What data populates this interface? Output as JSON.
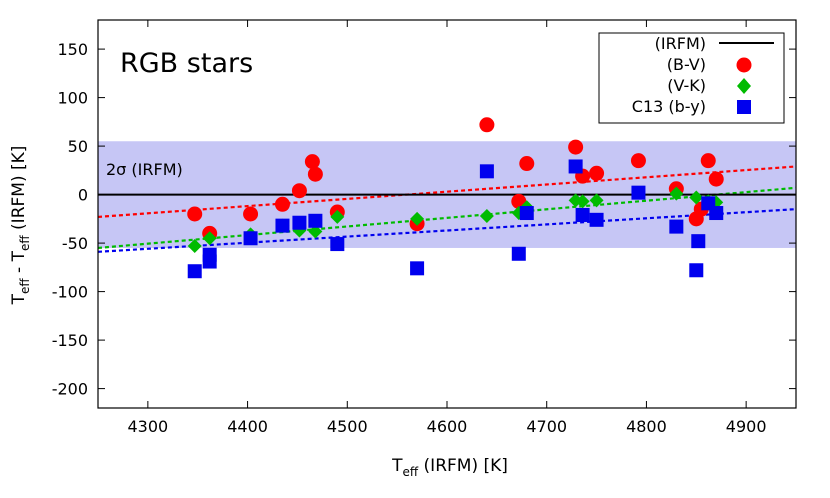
{
  "chart_data": {
    "type": "scatter",
    "title": "RGB stars",
    "xlabel": {
      "main": "T",
      "sub": "eff",
      "rest": " (IRFM) [K]"
    },
    "ylabel": {
      "main1": "T",
      "sub1": "eff",
      "mid": " - T",
      "sub2": "eff",
      "rest": " (IRFM) [K]"
    },
    "xlim": [
      4250,
      4950
    ],
    "ylim": [
      -220,
      180
    ],
    "xticks": [
      4300,
      4400,
      4500,
      4600,
      4700,
      4800,
      4900
    ],
    "yticks": [
      150,
      100,
      50,
      0,
      -50,
      -100,
      -150,
      -200
    ],
    "band": {
      "label": "2σ (IRFM)",
      "ymin": -55,
      "ymax": 55,
      "color": "#c6c6f5"
    },
    "zero_line": {
      "name": "(IRFM)",
      "y": 0,
      "color": "#000000"
    },
    "legend_position": "top-right",
    "series": [
      {
        "name": "(B-V)",
        "marker": "circle",
        "color": "#ff0000",
        "fit": {
          "intercept_at_xmin": -23,
          "intercept_at_xmax": 29
        },
        "points": [
          [
            4347,
            -20
          ],
          [
            4362,
            -40
          ],
          [
            4403,
            -20
          ],
          [
            4435,
            -10
          ],
          [
            4452,
            4
          ],
          [
            4465,
            34
          ],
          [
            4468,
            21
          ],
          [
            4490,
            -18
          ],
          [
            4570,
            -30
          ],
          [
            4640,
            72
          ],
          [
            4672,
            -7
          ],
          [
            4680,
            32
          ],
          [
            4729,
            49
          ],
          [
            4736,
            19
          ],
          [
            4750,
            22
          ],
          [
            4792,
            35
          ],
          [
            4830,
            6
          ],
          [
            4850,
            -25
          ],
          [
            4855,
            -15
          ],
          [
            4862,
            35
          ],
          [
            4870,
            16
          ]
        ]
      },
      {
        "name": "(V-K)",
        "marker": "diamond",
        "color": "#00bb00",
        "fit": {
          "intercept_at_xmin": -55,
          "intercept_at_xmax": 7
        },
        "points": [
          [
            4347,
            -53
          ],
          [
            4362,
            -45
          ],
          [
            4403,
            -41
          ],
          [
            4435,
            -32
          ],
          [
            4452,
            -37
          ],
          [
            4468,
            -38
          ],
          [
            4490,
            -23
          ],
          [
            4570,
            -25
          ],
          [
            4640,
            -22
          ],
          [
            4672,
            -19
          ],
          [
            4680,
            -13
          ],
          [
            4729,
            -6
          ],
          [
            4736,
            -7
          ],
          [
            4750,
            -6
          ],
          [
            4830,
            1
          ],
          [
            4850,
            -3
          ],
          [
            4862,
            -7
          ],
          [
            4870,
            -8
          ]
        ]
      },
      {
        "name": "C13 (b-y)",
        "marker": "square",
        "color": "#0000ee",
        "fit": {
          "intercept_at_xmin": -59,
          "intercept_at_xmax": -15
        },
        "points": [
          [
            4347,
            -79
          ],
          [
            4362,
            -62
          ],
          [
            4362,
            -69
          ],
          [
            4403,
            -45
          ],
          [
            4435,
            -32
          ],
          [
            4452,
            -29
          ],
          [
            4468,
            -27
          ],
          [
            4490,
            -51
          ],
          [
            4570,
            -76
          ],
          [
            4640,
            24
          ],
          [
            4672,
            -61
          ],
          [
            4680,
            -19
          ],
          [
            4729,
            29
          ],
          [
            4736,
            -21
          ],
          [
            4750,
            -26
          ],
          [
            4792,
            2
          ],
          [
            4830,
            -33
          ],
          [
            4850,
            -78
          ],
          [
            4852,
            -48
          ],
          [
            4862,
            -9
          ],
          [
            4870,
            -19
          ]
        ]
      }
    ]
  }
}
